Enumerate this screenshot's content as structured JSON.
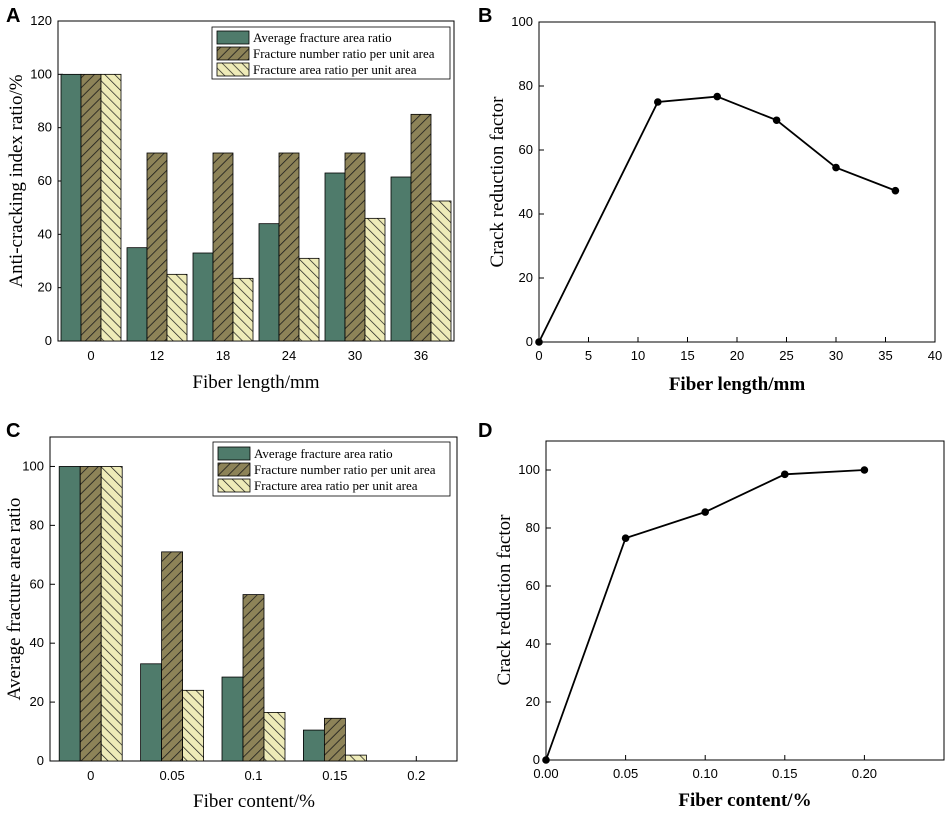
{
  "chart_data": [
    {
      "panel": "A",
      "type": "bar",
      "xlabel": "Fiber length/mm",
      "ylabel": "Anti-cracking index ratio/%",
      "categories": [
        "0",
        "12",
        "18",
        "24",
        "30",
        "36"
      ],
      "ylim": [
        0,
        120
      ],
      "yticks": [
        0,
        20,
        40,
        60,
        80,
        100,
        120
      ],
      "series": [
        {
          "name": "Average fracture area ratio",
          "values": [
            100,
            35,
            33,
            44,
            63,
            61.5
          ]
        },
        {
          "name": "Fracture number ratio per unit area",
          "values": [
            100,
            70.5,
            70.5,
            70.5,
            70.5,
            85
          ]
        },
        {
          "name": "Fracture area ratio per unit area",
          "values": [
            100,
            25,
            23.5,
            31,
            46,
            52.5
          ]
        }
      ],
      "legend": "top-right"
    },
    {
      "panel": "B",
      "type": "line",
      "xlabel": "Fiber length/mm",
      "ylabel": "Crack reduction factor",
      "x": [
        0,
        12,
        18,
        24,
        30,
        36
      ],
      "y": [
        0,
        75,
        76.7,
        69.3,
        54.5,
        47.3
      ],
      "xlim": [
        0,
        40
      ],
      "ylim": [
        0,
        100
      ],
      "xticks": [
        0,
        5,
        10,
        15,
        20,
        25,
        30,
        35,
        40
      ],
      "yticks": [
        0,
        20,
        40,
        60,
        80,
        100
      ]
    },
    {
      "panel": "C",
      "type": "bar",
      "xlabel": "Fiber content/%",
      "ylabel": "Average fracture area ratio",
      "categories": [
        "0",
        "0.05",
        "0.1",
        "0.15",
        "0.2"
      ],
      "ylim": [
        0,
        110
      ],
      "yticks": [
        0,
        20,
        40,
        60,
        80,
        100
      ],
      "series": [
        {
          "name": "Average fracture area ratio",
          "values": [
            100,
            33,
            28.5,
            10.5,
            0
          ]
        },
        {
          "name": "Fracture number ratio per unit area",
          "values": [
            100,
            71,
            56.5,
            14.5,
            0
          ]
        },
        {
          "name": "Fracture area ratio per unit area",
          "values": [
            100,
            24,
            16.5,
            2,
            0
          ]
        }
      ],
      "legend": "top-right"
    },
    {
      "panel": "D",
      "type": "line",
      "xlabel": "Fiber content/%",
      "ylabel": "Crack reduction factor",
      "x": [
        0,
        0.05,
        0.1,
        0.15,
        0.2
      ],
      "y": [
        0,
        76.5,
        85.5,
        98.5,
        100
      ],
      "xlim": [
        0,
        0.25
      ],
      "ylim": [
        0,
        110
      ],
      "xticks": [
        "0.00",
        "0.05",
        "0.10",
        "0.15",
        "0.20"
      ],
      "yticks": [
        0,
        20,
        40,
        60,
        80,
        100
      ]
    }
  ],
  "colors": {
    "series1_fill": "#4f7b6b",
    "series2_fill": "#8d8358",
    "series3_fill": "#eeebb8",
    "hatch": "#1a1a1a",
    "line": "#000000"
  }
}
